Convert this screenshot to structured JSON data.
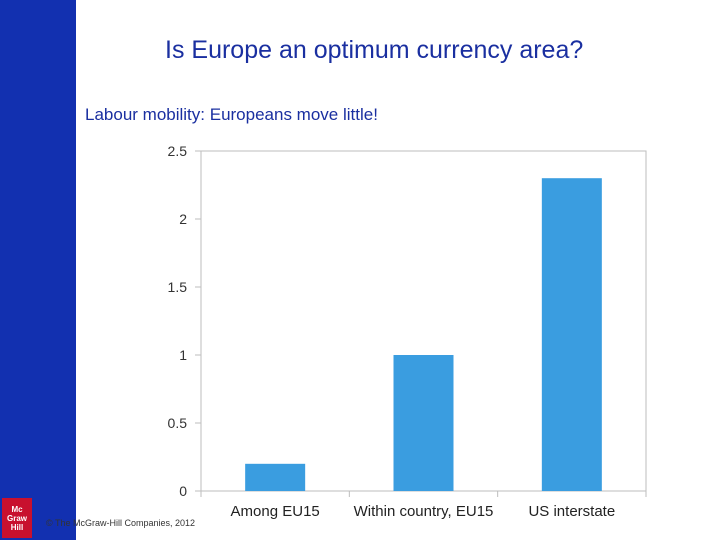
{
  "slide": {
    "title": "Is Europe an optimum currency area?",
    "subtitle": "Labour mobility: Europeans move little!",
    "copyright": "© The McGraw-Hill Companies, 2012"
  },
  "logo": {
    "lines": [
      "Mc",
      "Graw",
      "Hill"
    ]
  },
  "colors": {
    "sidebar": "#1230b0",
    "title_text": "#1a2fa0",
    "bar": "#3a9de0",
    "logo": "#c8102e"
  },
  "chart_data": {
    "type": "bar",
    "categories": [
      "Among EU15",
      "Within country, EU15",
      "US interstate"
    ],
    "values": [
      0.2,
      1.0,
      2.3
    ],
    "yticks": [
      "0",
      "0.5",
      "1",
      "1.5",
      "2",
      "2.5"
    ],
    "ylim": [
      0,
      2.5
    ],
    "xlabel": "",
    "ylabel": "",
    "grid": false
  }
}
